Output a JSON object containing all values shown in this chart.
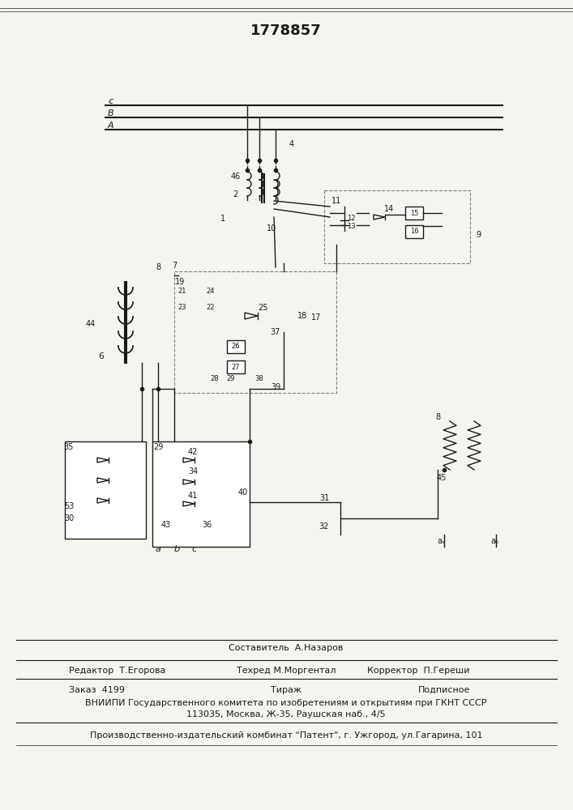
{
  "title": "1778857",
  "bg_color": "#f5f5f0",
  "line_color": "#1a1a1a",
  "footer_lines": [
    {
      "left": "Редактор  Т.Егорова",
      "center": "Техред М.Моргентал",
      "right": "Корректор  П.Гереши"
    },
    {
      "left": "Заказ  4199",
      "center": "Тираж",
      "right": "Подписное"
    },
    {
      "center": "ВНИИПИ Государственного комитета по изобретениям и открытиям при ГКНТ СССР"
    },
    {
      "center": "113035, Москва, Ж-35, Раушская наб., 4/5"
    },
    {
      "center": "Производственно-издательский комбинат \"Патент\", г. Ужгород, ул.Гагарина, 101"
    }
  ],
  "sestavitel": "Составитель  А.Назаров"
}
